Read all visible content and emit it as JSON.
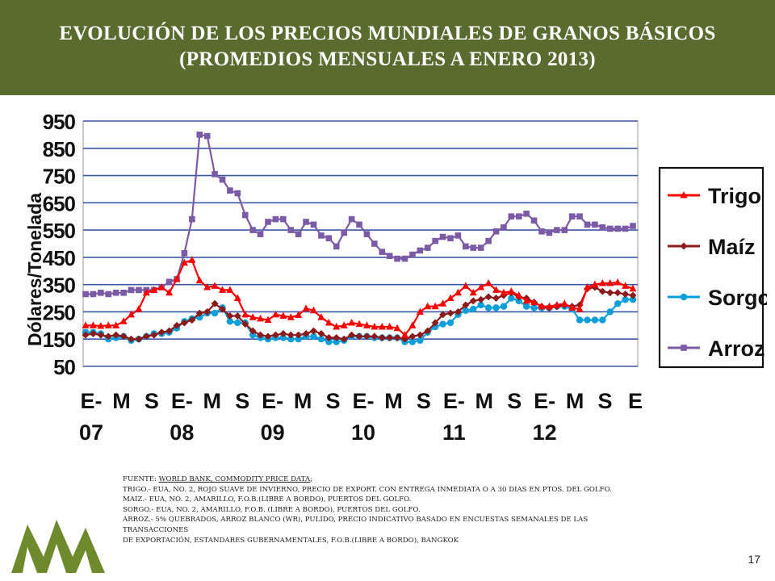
{
  "header": {
    "title_line1": "EVOLUCIÓN DE LOS PRECIOS MUNDIALES DE GRANOS BÁSICOS",
    "title_line2": "(PROMEDIOS MENSUALES A ENERO 2013)",
    "bg_color": "#5a6b2f"
  },
  "chart_data": {
    "type": "line",
    "ylabel": "Dólares/Tonelada",
    "ylim": [
      50,
      950
    ],
    "yticks": [
      50,
      150,
      250,
      350,
      450,
      550,
      650,
      750,
      850,
      950
    ],
    "grid": true,
    "legend_position": "right",
    "x_tick_labels": [
      {
        "top": "E-",
        "bottom": "07"
      },
      {
        "top": "M",
        "bottom": ""
      },
      {
        "top": "S",
        "bottom": ""
      },
      {
        "top": "E-",
        "bottom": "08"
      },
      {
        "top": "M",
        "bottom": ""
      },
      {
        "top": "S",
        "bottom": ""
      },
      {
        "top": "E-",
        "bottom": "09"
      },
      {
        "top": "M",
        "bottom": ""
      },
      {
        "top": "S",
        "bottom": ""
      },
      {
        "top": "E-",
        "bottom": "10"
      },
      {
        "top": "M",
        "bottom": ""
      },
      {
        "top": "S",
        "bottom": ""
      },
      {
        "top": "E-",
        "bottom": "11"
      },
      {
        "top": "M",
        "bottom": ""
      },
      {
        "top": "S",
        "bottom": ""
      },
      {
        "top": "E-",
        "bottom": "12"
      },
      {
        "top": "M",
        "bottom": ""
      },
      {
        "top": "S",
        "bottom": ""
      },
      {
        "top": "E",
        "bottom": ""
      }
    ],
    "series": [
      {
        "name": "Trigo",
        "color": "#ff0000",
        "marker": "triangle",
        "values": [
          200,
          200,
          198,
          200,
          200,
          215,
          240,
          260,
          320,
          330,
          340,
          320,
          370,
          430,
          440,
          365,
          340,
          345,
          330,
          330,
          300,
          240,
          230,
          225,
          220,
          240,
          235,
          230,
          238,
          262,
          255,
          230,
          210,
          195,
          200,
          210,
          205,
          200,
          195,
          195,
          195,
          190,
          165,
          200,
          250,
          270,
          270,
          280,
          300,
          320,
          345,
          320,
          340,
          355,
          330,
          320,
          325,
          310,
          290,
          285,
          270,
          270,
          275,
          280,
          265,
          260,
          340,
          350,
          355,
          355,
          358,
          345,
          335
        ]
      },
      {
        "name": "Maíz",
        "color": "#8b1a1a",
        "marker": "diamond",
        "values": [
          165,
          170,
          165,
          160,
          165,
          160,
          150,
          150,
          160,
          165,
          175,
          180,
          200,
          210,
          220,
          245,
          250,
          280,
          260,
          235,
          235,
          205,
          180,
          165,
          160,
          165,
          170,
          165,
          165,
          170,
          180,
          170,
          155,
          155,
          150,
          165,
          160,
          160,
          160,
          155,
          155,
          155,
          150,
          160,
          165,
          180,
          210,
          240,
          245,
          250,
          275,
          290,
          295,
          305,
          300,
          310,
          320,
          305,
          300,
          285,
          270,
          265,
          270,
          275,
          270,
          275,
          335,
          340,
          325,
          320,
          320,
          315,
          310
        ]
      },
      {
        "name": "Sorgo",
        "color": "#0a9fd8",
        "marker": "circle",
        "values": [
          175,
          175,
          170,
          150,
          155,
          160,
          145,
          150,
          160,
          170,
          170,
          175,
          190,
          215,
          225,
          230,
          245,
          245,
          265,
          215,
          210,
          210,
          165,
          155,
          150,
          155,
          155,
          150,
          150,
          160,
          160,
          150,
          140,
          140,
          145,
          160,
          160,
          160,
          155,
          155,
          155,
          155,
          140,
          140,
          145,
          175,
          195,
          205,
          210,
          240,
          255,
          260,
          275,
          265,
          265,
          270,
          300,
          290,
          270,
          265,
          265,
          265,
          270,
          270,
          260,
          220,
          220,
          220,
          220,
          250,
          280,
          295,
          295
        ]
      },
      {
        "name": "Arroz",
        "color": "#7b5aa6",
        "marker": "square",
        "values": [
          315,
          315,
          320,
          315,
          320,
          320,
          330,
          330,
          330,
          330,
          340,
          360,
          370,
          465,
          590,
          900,
          895,
          755,
          735,
          695,
          685,
          605,
          550,
          535,
          580,
          590,
          590,
          550,
          535,
          580,
          570,
          530,
          520,
          490,
          540,
          590,
          570,
          535,
          500,
          470,
          455,
          445,
          445,
          460,
          475,
          485,
          510,
          525,
          520,
          530,
          490,
          485,
          485,
          510,
          545,
          560,
          600,
          600,
          610,
          585,
          545,
          540,
          550,
          550,
          600,
          600,
          570,
          570,
          560,
          555,
          555,
          555,
          565
        ]
      }
    ]
  },
  "footnotes": {
    "source_prefix": "FUENTE: ",
    "source_link": "WORLD BANK, COMMODITY PRICE DATA",
    "source_suffix": ";",
    "line_trigo": "TRIGO.-  EUA, NO. 2, ROJO SUAVE DE INVIERNO,  PRECIO DE EXPORT. CON ENTREGA INMEDIATA  O A 30 DIAS EN PTOS. DEL GOLFO.",
    "line_maiz": "MAIZ.-    EUA, NO. 2, AMARILLO, F.O.B.(LIBRE A BORDO), PUERTOS DEL GOLFO.",
    "line_sorgo": "SORGO.- EUA, NO. 2, AMARILLO, F.O.B. (LIBRE A BORDO), PUERTOS DEL GOLFO.",
    "line_arroz1": "ARROZ.- 5% QUEBRADOS, ARROZ BLANCO (WR),   PULIDO, PRECIO INDICATIVO BASADO  EN  ENCUESTAS SEMANALES DE LAS",
    "line_arroz2": "TRANSACCIONES",
    "line_arroz3": "DE EXPORTACIÓN, ESTANDARES GUBERNAMENTALES, F.O.B.(LIBRE A BORDO),  BANGKOK"
  },
  "page_number": "17",
  "logo_color": "#6e8a2c"
}
